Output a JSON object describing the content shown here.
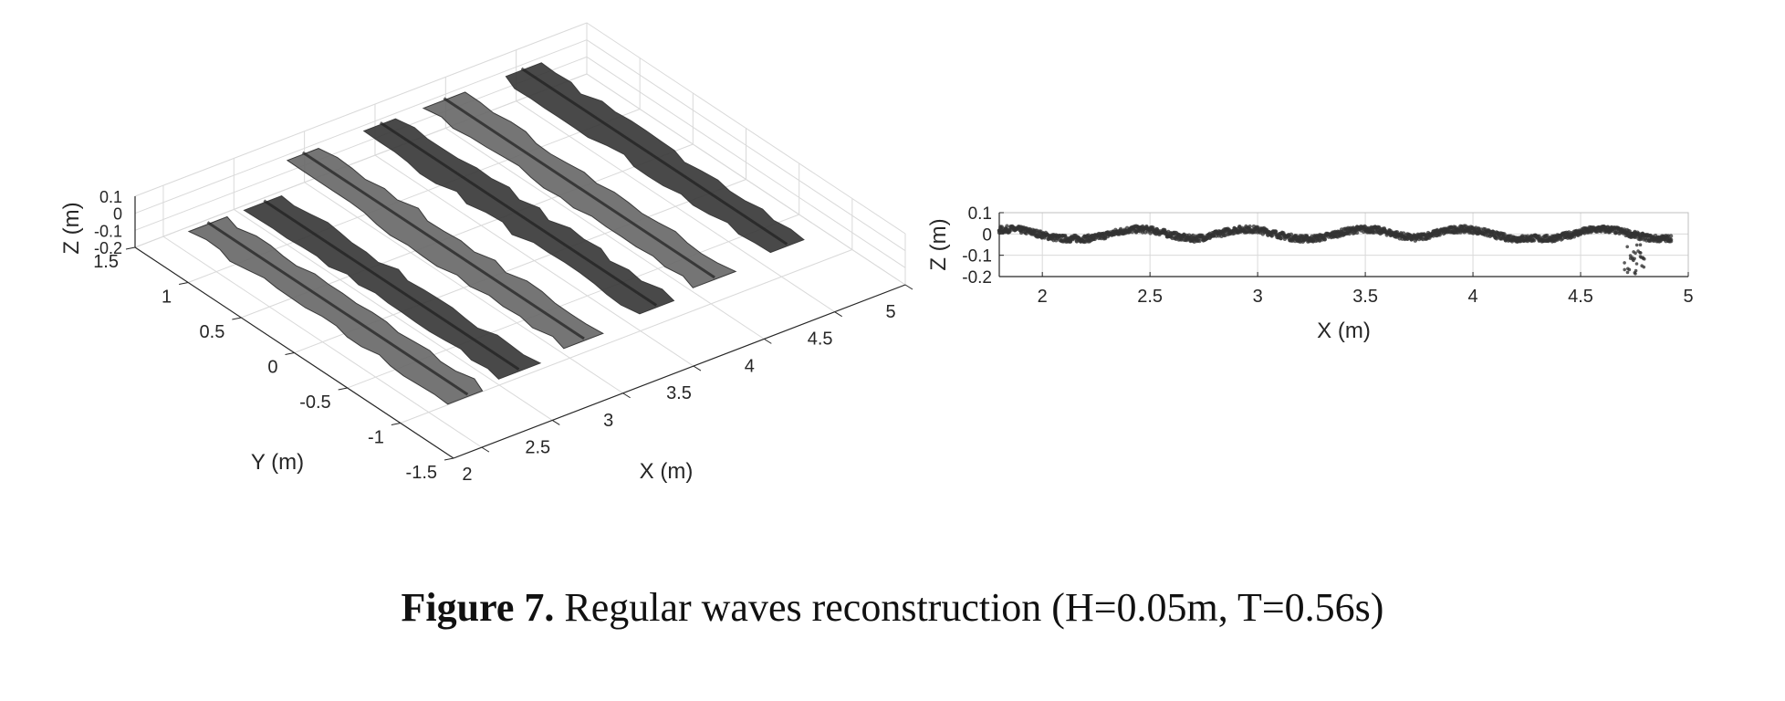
{
  "caption": {
    "label": "Figure 7.",
    "text": "Regular waves reconstruction (H=0.05m, T=0.56s)"
  },
  "colors": {
    "surface": "#3a3a3a",
    "surface_light": "#6a6a6a",
    "grid": "#d9d9d9",
    "axis": "#262626"
  },
  "chart_data": [
    {
      "type": "surface3d",
      "xlabel": "X (m)",
      "ylabel": "Y (m)",
      "zlabel": "Z (m)",
      "xlim": [
        1.8,
        5
      ],
      "ylim": [
        -1.5,
        1.5
      ],
      "zlim": [
        -0.2,
        0.1
      ],
      "xticks": [
        "2",
        "2.5",
        "3",
        "3.5",
        "4",
        "4.5",
        "5"
      ],
      "yticks": [
        "-1.5",
        "-1",
        "-0.5",
        "0",
        "0.5",
        "1",
        "1.5"
      ],
      "zticks": [
        "-0.2",
        "-0.1",
        "0",
        "0.1"
      ],
      "wave_crest_x": [
        2.05,
        2.45,
        2.95,
        3.5,
        3.95,
        4.5
      ],
      "wave_height_m": 0.05,
      "grid": true
    },
    {
      "type": "scatter",
      "xlabel": "X (m)",
      "ylabel": "Z (m)",
      "xlim": [
        1.8,
        5
      ],
      "ylim": [
        -0.2,
        0.1
      ],
      "xticks": [
        "2",
        "2.5",
        "3",
        "3.5",
        "4",
        "4.5",
        "5"
      ],
      "yticks": [
        "0.1",
        "0",
        "-0.1",
        "-0.2"
      ],
      "wave_crest_x": [
        1.85,
        2.45,
        2.95,
        3.5,
        3.95,
        4.6
      ],
      "wave_amplitude_m": 0.025,
      "grid": true
    }
  ]
}
